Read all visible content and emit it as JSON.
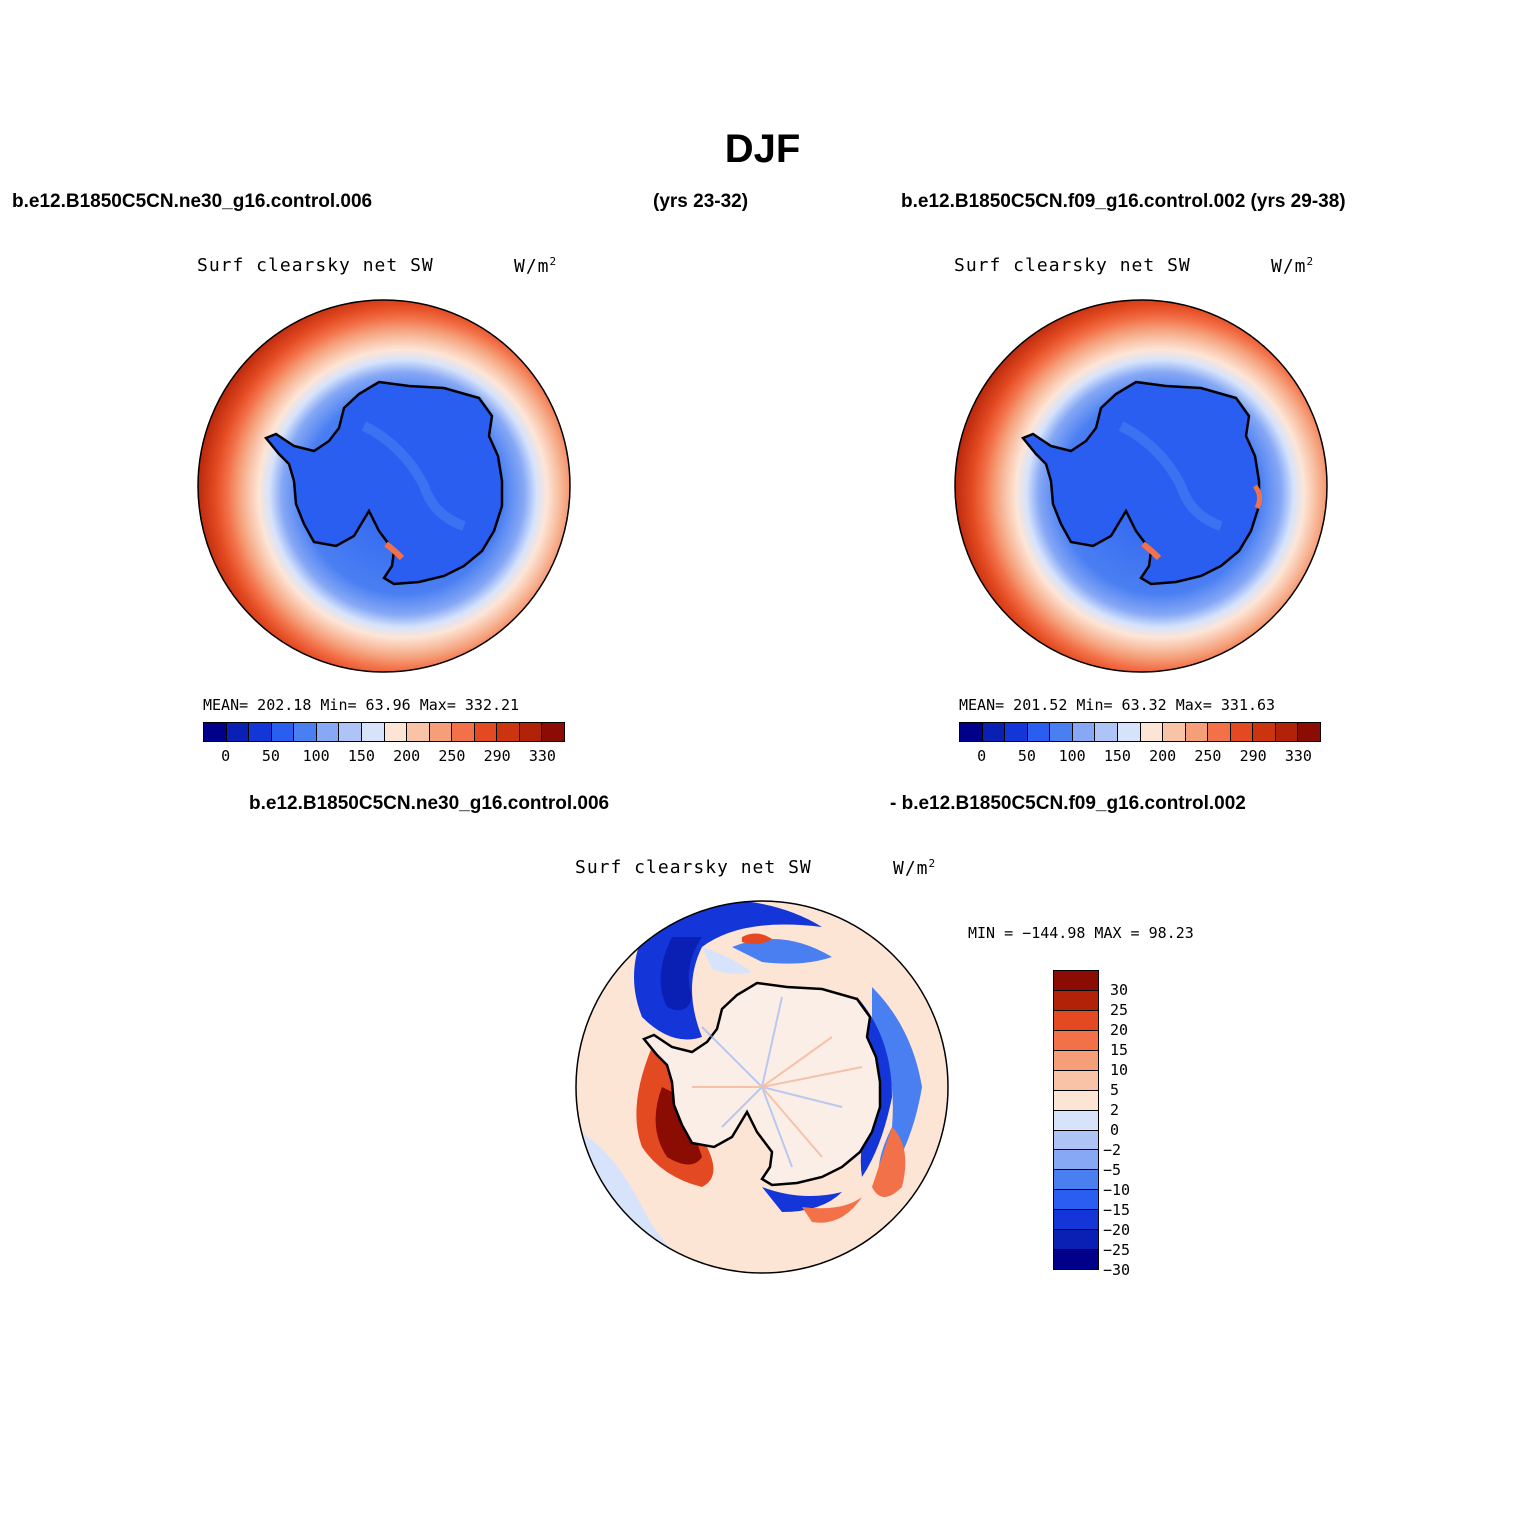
{
  "title": "DJF",
  "header": {
    "case_a": "b.e12.B1850C5CN.ne30_g16.control.006",
    "case_a_years": "(yrs 23-32)",
    "case_b": "b.e12.B1850C5CN.f09_g16.control.002 (yrs 29-38)"
  },
  "panels": [
    {
      "title": "Surf clearsky net SW",
      "units": "W/m",
      "units_sup": "2",
      "stats": "MEAN= 202.18   Min=   63.96   Max= 332.21",
      "colorbar_ticks": [
        "0",
        "50",
        "100",
        "150",
        "200",
        "250",
        "290",
        "330"
      ]
    },
    {
      "title": "Surf clearsky net SW",
      "units": "W/m",
      "units_sup": "2",
      "stats": "MEAN= 201.52   Min=   63.32   Max= 331.63",
      "colorbar_ticks": [
        "0",
        "50",
        "100",
        "150",
        "200",
        "250",
        "290",
        "330"
      ]
    }
  ],
  "diff": {
    "label_a": "b.e12.B1850C5CN.ne30_g16.control.006",
    "label_b": "- b.e12.B1850C5CN.f09_g16.control.002",
    "title": "Surf clearsky net SW",
    "units": "W/m",
    "units_sup": "2",
    "stats": "MIN = −144.98 MAX =   98.23",
    "colorbar_labels": [
      "30",
      "25",
      "20",
      "15",
      "10",
      "5",
      "2",
      "0",
      "−2",
      "−5",
      "−10",
      "−15",
      "−20",
      "−25",
      "−30"
    ]
  },
  "colors": {
    "abs_scale": [
      "#00008b",
      "#0a1fb3",
      "#1436d9",
      "#2a5ef0",
      "#4a7ff2",
      "#86a8f5",
      "#aec4f7",
      "#d6e3fb",
      "#fde5d6",
      "#f9c3a8",
      "#f59e78",
      "#f37149",
      "#e34a21",
      "#cc3410",
      "#b22208",
      "#8b0c02"
    ],
    "diff_scale": [
      "#8b0c02",
      "#b22208",
      "#e34a21",
      "#f37149",
      "#f59e78",
      "#f9c3a8",
      "#fde5d6",
      "#d6e3fb",
      "#aec4f7",
      "#86a8f5",
      "#4a7ff2",
      "#2a5ef0",
      "#1436d9",
      "#0a1fb3",
      "#00008b"
    ]
  }
}
